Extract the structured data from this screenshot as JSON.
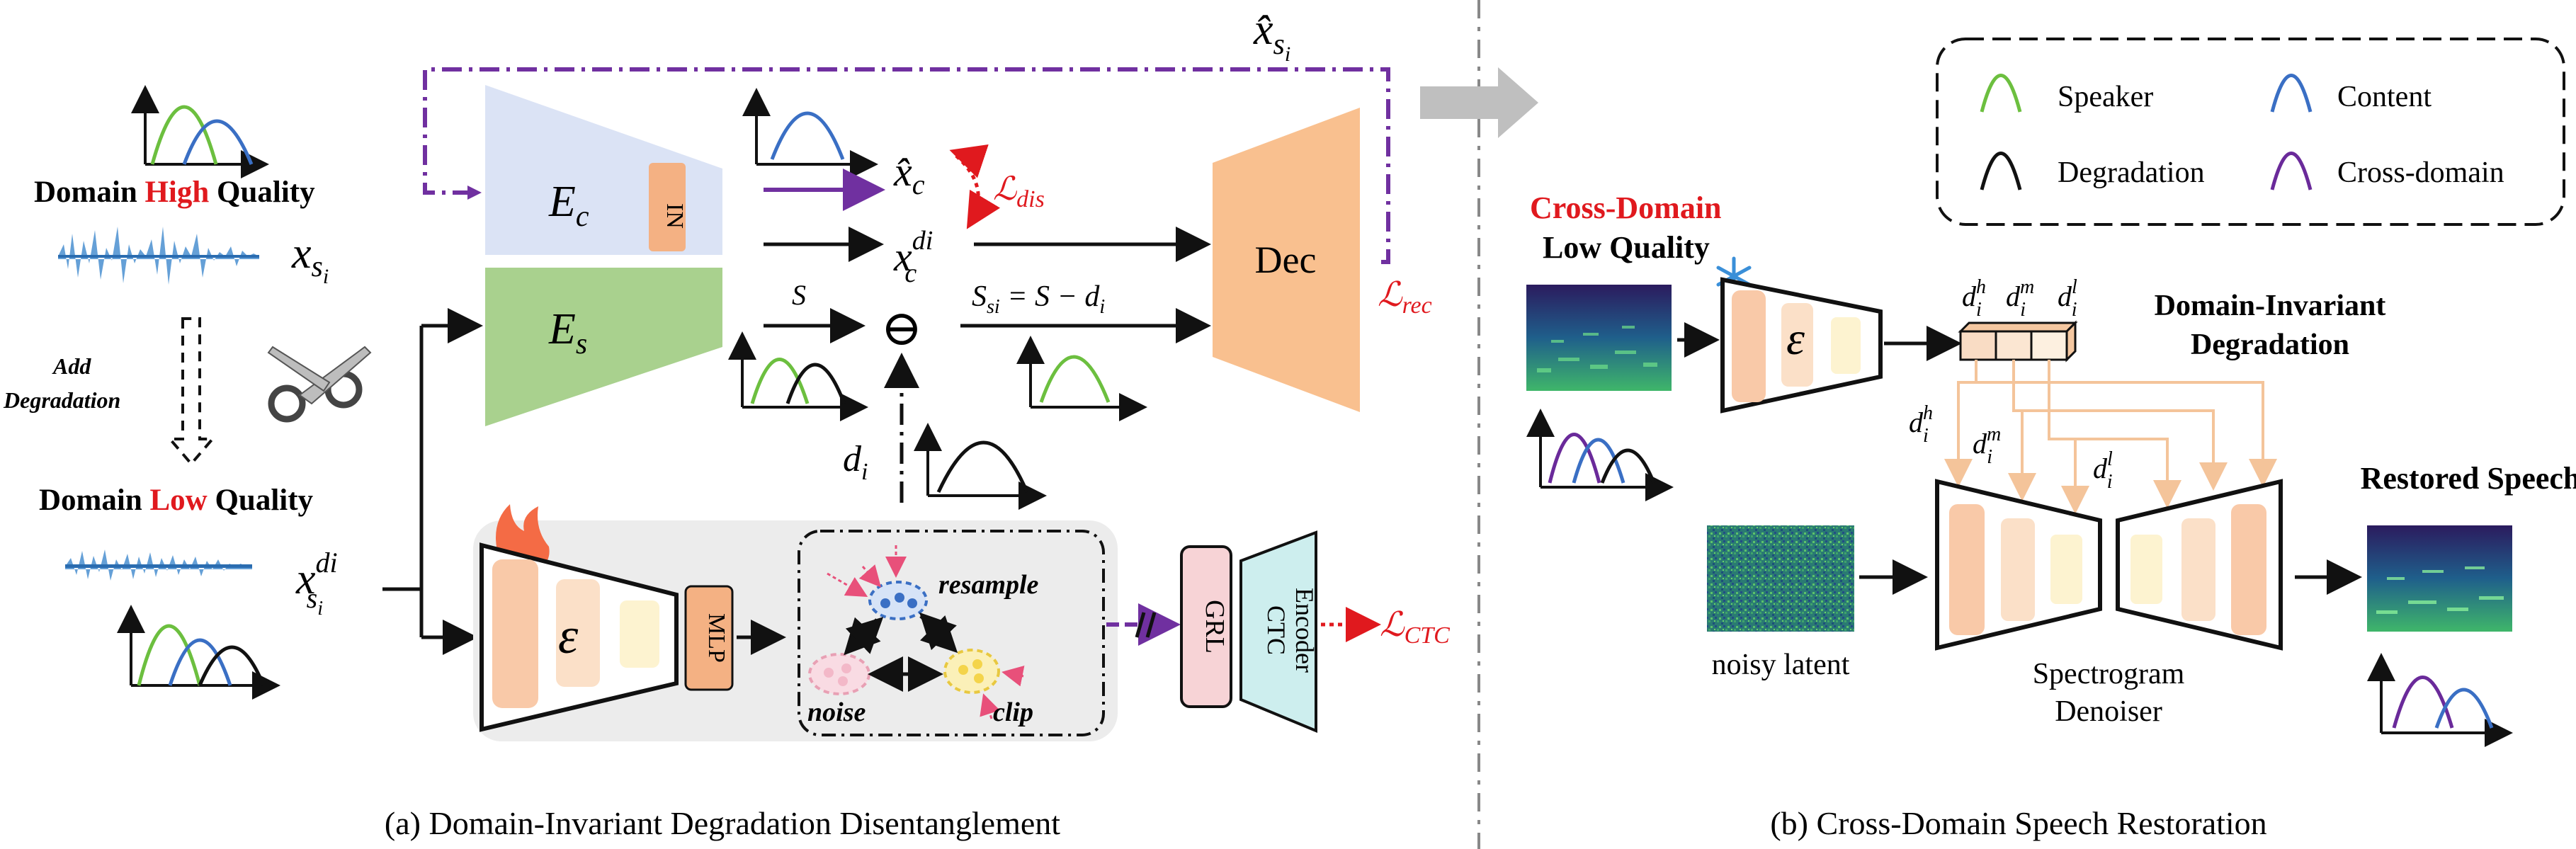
{
  "colors": {
    "speaker": "#6cbf3f",
    "content": "#3a6fc4",
    "degradation": "#111111",
    "cross_domain": "#6a2a9a",
    "loss_red": "#e0191e",
    "enc_blue": "#dbe3f5",
    "enc_green": "#a9d18e",
    "dec_orange": "#f9c08f",
    "light_orange": "#f8cba3",
    "grl_pink": "#f7d3d6",
    "ctc_teal": "#cdeeee",
    "mlp_orange": "#f4b183",
    "purple_dash": "#7030a0"
  },
  "left": {
    "high_quality": {
      "pre": "Domain ",
      "highlight": "High",
      "post": " Quality"
    },
    "x_si": "x",
    "x_si_sub": "s",
    "x_si_subsub": "i",
    "add_degradation_1": "Add",
    "add_degradation_2": "Degradation",
    "low_quality": {
      "pre": "Domain ",
      "highlight": "Low",
      "post": " Quality"
    },
    "x_di": "x",
    "x_di_sup": "di",
    "x_di_sub": "s",
    "x_di_subsub": "i"
  },
  "encoders": {
    "ec": "E",
    "ec_sub": "c",
    "in_label": "IN",
    "es": "E",
    "es_sub": "s",
    "degradation_encoder": "ε",
    "mlp": "MLP",
    "dec": "Dec",
    "grl": "GRL",
    "ctc_1": "CTC",
    "ctc_2": "Encoder"
  },
  "middle": {
    "xhat_top": "x̂",
    "xhat_top_sub": "s",
    "xhat_top_subsub": "i",
    "xc_hat": "x̂",
    "xc_hat_sub": "c",
    "l_dis": "ℒ",
    "l_dis_sub": "dis",
    "xc_di": "x",
    "xc_di_sup": "di",
    "xc_di_sub": "c",
    "s_si_di": "S",
    "s_eq": "S",
    "s_eq_sub": "si",
    "s_eq_rest": " = S",
    "s_eq_minus": " − d",
    "s_eq_minus_sub": "i",
    "di": "d",
    "di_sub": "i",
    "minus_symbol": "⊖",
    "l_rec": "ℒ",
    "l_rec_sub": "rec",
    "l_ctc": "ℒ",
    "l_ctc_sub": "CTC",
    "resample": "resample",
    "noise": "noise",
    "clip": "clip"
  },
  "legend": {
    "items": [
      {
        "label": "Speaker",
        "color": "#6cbf3f"
      },
      {
        "label": "Content",
        "color": "#3a6fc4"
      },
      {
        "label": "Degradation",
        "color": "#111111"
      },
      {
        "label": "Cross-domain",
        "color": "#6a2a9a"
      }
    ]
  },
  "right": {
    "cross_domain": "Cross-Domain",
    "low_quality": "Low Quality",
    "encoder": "ε",
    "dh": "d",
    "dh_sup": "h",
    "dm": "d",
    "dm_sup": "m",
    "dl": "d",
    "dl_sup": "l",
    "d_sub": "i",
    "dom_inv_1": "Domain-Invariant",
    "dom_inv_2": "Degradation",
    "noisy_latent": "noisy latent",
    "denoiser_1": "Spectrogram",
    "denoiser_2": "Denoiser",
    "restored": "Restored Speech"
  },
  "captions": {
    "a": "(a) Domain-Invariant Degradation Disentanglement",
    "b": "(b) Cross-Domain Speech Restoration"
  }
}
